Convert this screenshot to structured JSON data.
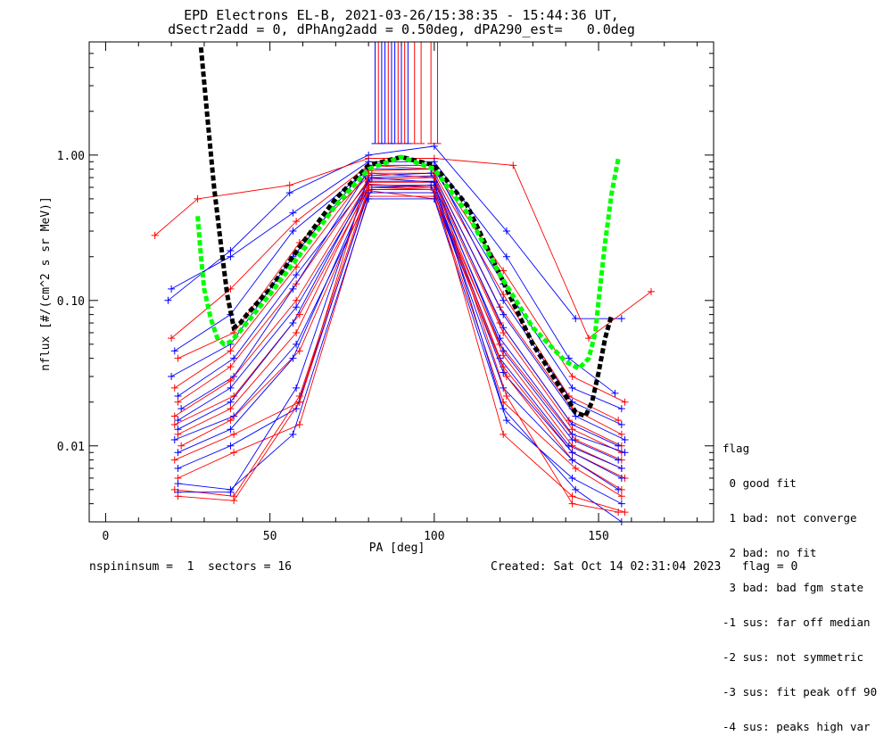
{
  "title_line1": "EPD Electrons EL-B, 2021-03-26/15:38:35 - 15:44:36 UT,",
  "title_line2": "dSectr2add = 0, dPhAng2add = 0.50deg, dPA290_est=   0.0deg",
  "footer_left": "nspininsum =  1  sectors = 16",
  "footer_right": "Created: Sat Oct 14 02:31:04 2023   flag = 0",
  "legend": {
    "title": "flag",
    "entries": [
      " 0 good fit",
      " 1 bad: not converge",
      " 2 bad: no fit",
      " 3 bad: bad fgm state",
      "-1 sus: far off median",
      "-2 sus: not symmetric",
      "-3 sus: fit peak off 90",
      "-4 sus: peaks high var"
    ]
  },
  "colors": {
    "blue": "#0000ff",
    "red": "#ff0000",
    "green": "#00ff00",
    "black": "#000000"
  },
  "chart_data": {
    "type": "line",
    "xlabel": "PA [deg]",
    "ylabel": "nflux [#/(cm^2 s sr MeV)]",
    "xlim": [
      -5,
      185
    ],
    "ylim": [
      0.003,
      6.0
    ],
    "ylog": true,
    "x_ticks": [
      0,
      50,
      100,
      150
    ],
    "y_ticks": [
      {
        "v": 0.01,
        "label": "0.01"
      },
      {
        "v": 0.1,
        "label": "0.10"
      },
      {
        "v": 1.0,
        "label": "1.00"
      }
    ],
    "series": [
      {
        "color": "blue",
        "x": [
          19,
          38,
          56,
          80,
          100,
          122,
          143,
          157
        ],
        "y": [
          0.1,
          0.22,
          0.55,
          1.0,
          1.15,
          0.3,
          0.075,
          0.075
        ]
      },
      {
        "color": "red",
        "x": [
          15,
          28,
          56,
          80,
          100,
          124,
          147,
          166
        ],
        "y": [
          0.28,
          0.5,
          0.62,
          0.95,
          0.95,
          0.85,
          0.055,
          0.115
        ]
      },
      {
        "color": "blue",
        "x": [
          20,
          38,
          57,
          80,
          100,
          122,
          141,
          155
        ],
        "y": [
          0.12,
          0.2,
          0.4,
          0.9,
          0.9,
          0.2,
          0.04,
          0.023
        ]
      },
      {
        "color": "red",
        "x": [
          20,
          38,
          58,
          80,
          100,
          121,
          142,
          158
        ],
        "y": [
          0.055,
          0.12,
          0.35,
          0.85,
          0.8,
          0.16,
          0.03,
          0.02
        ]
      },
      {
        "color": "blue",
        "x": [
          21,
          38,
          57,
          80,
          100,
          121,
          142,
          157
        ],
        "y": [
          0.045,
          0.08,
          0.3,
          0.8,
          0.8,
          0.13,
          0.025,
          0.018
        ]
      },
      {
        "color": "red",
        "x": [
          22,
          39,
          59,
          81,
          100,
          121,
          141,
          156
        ],
        "y": [
          0.04,
          0.06,
          0.25,
          0.75,
          0.75,
          0.11,
          0.022,
          0.015
        ]
      },
      {
        "color": "blue",
        "x": [
          20,
          38,
          57,
          80,
          100,
          121,
          142,
          157
        ],
        "y": [
          0.03,
          0.05,
          0.2,
          0.85,
          0.85,
          0.1,
          0.02,
          0.014
        ]
      },
      {
        "color": "red",
        "x": [
          21,
          38,
          58,
          80,
          99,
          120,
          142,
          157
        ],
        "y": [
          0.025,
          0.045,
          0.17,
          0.78,
          0.8,
          0.09,
          0.018,
          0.012
        ]
      },
      {
        "color": "blue",
        "x": [
          22,
          39,
          58,
          81,
          100,
          121,
          143,
          158
        ],
        "y": [
          0.022,
          0.04,
          0.15,
          0.7,
          0.72,
          0.08,
          0.016,
          0.011
        ]
      },
      {
        "color": "red",
        "x": [
          22,
          38,
          58,
          80,
          100,
          120,
          141,
          157
        ],
        "y": [
          0.02,
          0.035,
          0.13,
          0.68,
          0.7,
          0.07,
          0.015,
          0.01
        ]
      },
      {
        "color": "blue",
        "x": [
          23,
          39,
          57,
          79,
          99,
          121,
          142,
          156
        ],
        "y": [
          0.018,
          0.03,
          0.12,
          0.72,
          0.75,
          0.065,
          0.014,
          0.01
        ]
      },
      {
        "color": "red",
        "x": [
          21,
          38,
          58,
          80,
          100,
          121,
          142,
          157
        ],
        "y": [
          0.016,
          0.028,
          0.1,
          0.65,
          0.65,
          0.06,
          0.013,
          0.009
        ]
      },
      {
        "color": "blue",
        "x": [
          22,
          38,
          58,
          80,
          100,
          120,
          142,
          158
        ],
        "y": [
          0.015,
          0.025,
          0.09,
          0.62,
          0.62,
          0.055,
          0.012,
          0.009
        ]
      },
      {
        "color": "red",
        "x": [
          21,
          39,
          59,
          80,
          99,
          120,
          143,
          157
        ],
        "y": [
          0.014,
          0.022,
          0.08,
          0.6,
          0.6,
          0.05,
          0.011,
          0.008
        ]
      },
      {
        "color": "blue",
        "x": [
          22,
          38,
          57,
          80,
          100,
          121,
          142,
          156
        ],
        "y": [
          0.013,
          0.02,
          0.07,
          0.66,
          0.66,
          0.045,
          0.011,
          0.008
        ]
      },
      {
        "color": "red",
        "x": [
          22,
          38,
          58,
          80,
          100,
          121,
          142,
          157
        ],
        "y": [
          0.012,
          0.018,
          0.06,
          0.63,
          0.6,
          0.042,
          0.01,
          0.007
        ]
      },
      {
        "color": "blue",
        "x": [
          21,
          39,
          58,
          81,
          100,
          120,
          141,
          157
        ],
        "y": [
          0.011,
          0.016,
          0.05,
          0.58,
          0.58,
          0.04,
          0.01,
          0.007
        ]
      },
      {
        "color": "red",
        "x": [
          23,
          38,
          59,
          80,
          100,
          121,
          142,
          158
        ],
        "y": [
          0.01,
          0.015,
          0.045,
          0.55,
          0.55,
          0.035,
          0.009,
          0.006
        ]
      },
      {
        "color": "blue",
        "x": [
          22,
          38,
          57,
          80,
          99,
          121,
          142,
          157
        ],
        "y": [
          0.009,
          0.013,
          0.04,
          0.6,
          0.62,
          0.032,
          0.009,
          0.006
        ]
      },
      {
        "color": "red",
        "x": [
          21,
          39,
          59,
          80,
          100,
          122,
          142,
          157
        ],
        "y": [
          0.008,
          0.012,
          0.02,
          0.57,
          0.5,
          0.03,
          0.008,
          0.005
        ]
      },
      {
        "color": "blue",
        "x": [
          22,
          38,
          58,
          80,
          100,
          121,
          142,
          156
        ],
        "y": [
          0.007,
          0.01,
          0.018,
          0.55,
          0.55,
          0.025,
          0.008,
          0.005
        ]
      },
      {
        "color": "red",
        "x": [
          22,
          39,
          59,
          80,
          100,
          121,
          143,
          157
        ],
        "y": [
          0.006,
          0.009,
          0.014,
          0.52,
          0.52,
          0.02,
          0.007,
          0.0045
        ]
      },
      {
        "color": "blue",
        "x": [
          22,
          38,
          57,
          80,
          100,
          122,
          142,
          157
        ],
        "y": [
          0.0055,
          0.005,
          0.012,
          0.5,
          0.5,
          0.015,
          0.006,
          0.004
        ]
      },
      {
        "color": "red",
        "x": [
          21,
          39,
          59,
          80,
          100,
          121,
          142,
          158
        ],
        "y": [
          0.005,
          0.0045,
          0.022,
          0.6,
          0.58,
          0.012,
          0.0045,
          0.0035
        ]
      },
      {
        "color": "blue",
        "x": [
          22,
          38,
          58,
          80,
          100,
          121,
          143,
          157
        ],
        "y": [
          0.0048,
          0.0048,
          0.025,
          0.7,
          0.65,
          0.018,
          0.005,
          0.003
        ]
      },
      {
        "color": "red",
        "x": [
          22,
          39,
          59,
          80,
          100,
          122,
          142,
          156
        ],
        "y": [
          0.0045,
          0.0042,
          0.02,
          0.75,
          0.7,
          0.022,
          0.004,
          0.0035
        ]
      }
    ],
    "fits": [
      {
        "color": "black",
        "x": [
          29,
          31,
          33,
          35,
          37,
          39,
          41,
          43,
          45,
          50,
          60,
          70,
          80,
          90,
          100,
          110,
          120,
          130,
          140,
          143,
          146,
          148,
          150,
          152,
          154
        ],
        "y": [
          5.5,
          1.8,
          0.6,
          0.25,
          0.11,
          0.065,
          0.07,
          0.08,
          0.09,
          0.12,
          0.25,
          0.5,
          0.85,
          0.97,
          0.85,
          0.45,
          0.15,
          0.05,
          0.022,
          0.017,
          0.016,
          0.02,
          0.032,
          0.055,
          0.08
        ]
      },
      {
        "color": "green",
        "x": [
          28,
          29,
          30,
          32,
          34,
          36,
          38,
          40,
          45,
          50,
          60,
          70,
          80,
          90,
          100,
          110,
          120,
          130,
          140,
          144,
          147,
          149,
          150,
          152,
          154,
          156
        ],
        "y": [
          0.38,
          0.2,
          0.12,
          0.075,
          0.055,
          0.05,
          0.052,
          0.058,
          0.08,
          0.11,
          0.22,
          0.45,
          0.8,
          0.97,
          0.8,
          0.4,
          0.15,
          0.065,
          0.038,
          0.034,
          0.04,
          0.06,
          0.1,
          0.25,
          0.55,
          0.95
        ]
      }
    ],
    "spike_lines": [
      {
        "x": 82,
        "color": "blue"
      },
      {
        "x": 83,
        "color": "red"
      },
      {
        "x": 84,
        "color": "blue"
      },
      {
        "x": 85,
        "color": "blue"
      },
      {
        "x": 86,
        "color": "red"
      },
      {
        "x": 87,
        "color": "blue"
      },
      {
        "x": 88,
        "color": "blue"
      },
      {
        "x": 89,
        "color": "red"
      },
      {
        "x": 90,
        "color": "blue"
      },
      {
        "x": 91,
        "color": "red"
      },
      {
        "x": 92,
        "color": "blue"
      },
      {
        "x": 94,
        "color": "red"
      },
      {
        "x": 96,
        "color": "red"
      },
      {
        "x": 99,
        "color": "red"
      },
      {
        "x": 101,
        "color": "red"
      }
    ],
    "spike_from": 1.2
  }
}
